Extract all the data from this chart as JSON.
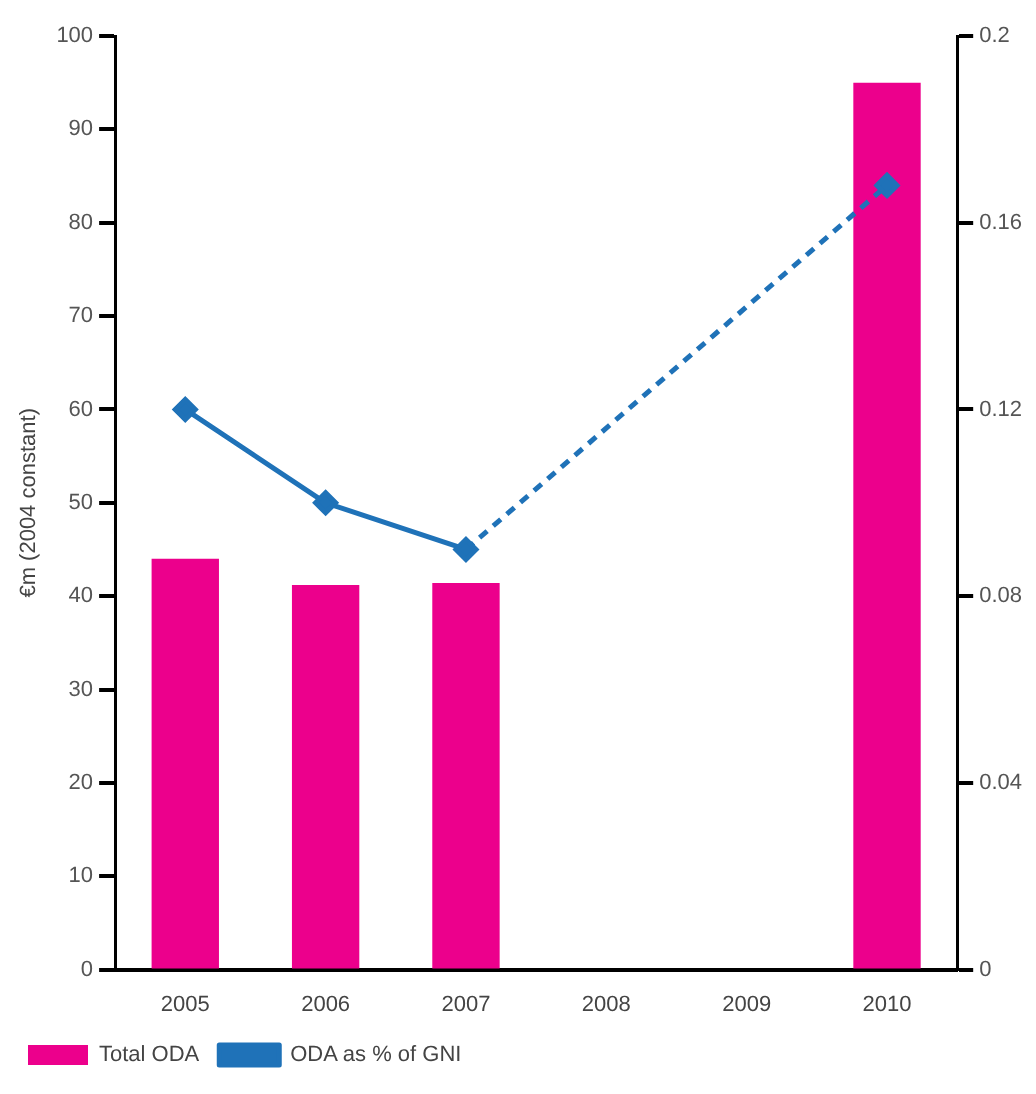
{
  "chart_data": {
    "type": "bar",
    "ylabel": "€m (2004 constant)",
    "categories": [
      "2005",
      "2006",
      "2007",
      "2008",
      "2009",
      "2010"
    ],
    "series": [
      {
        "name": "Total ODA",
        "color": "#ec008c",
        "values": [
          44,
          41.2,
          41.4,
          null,
          null,
          95
        ]
      },
      {
        "name": "ODA as % of GNI",
        "type": "line",
        "axis": "y2",
        "color": "#1f72b8",
        "values": [
          0.12,
          0.1,
          0.09,
          null,
          null,
          0.168
        ]
      }
    ],
    "ylim": [
      0,
      100
    ],
    "yticks": [
      0,
      10,
      20,
      30,
      40,
      50,
      60,
      70,
      80,
      90,
      100
    ],
    "y2lim": [
      0,
      0.2
    ],
    "y2ticks": [
      0,
      0.04,
      0.08,
      0.12,
      0.16,
      0.2
    ],
    "marker": "diamond",
    "legend": "bottom left",
    "grid": false
  }
}
